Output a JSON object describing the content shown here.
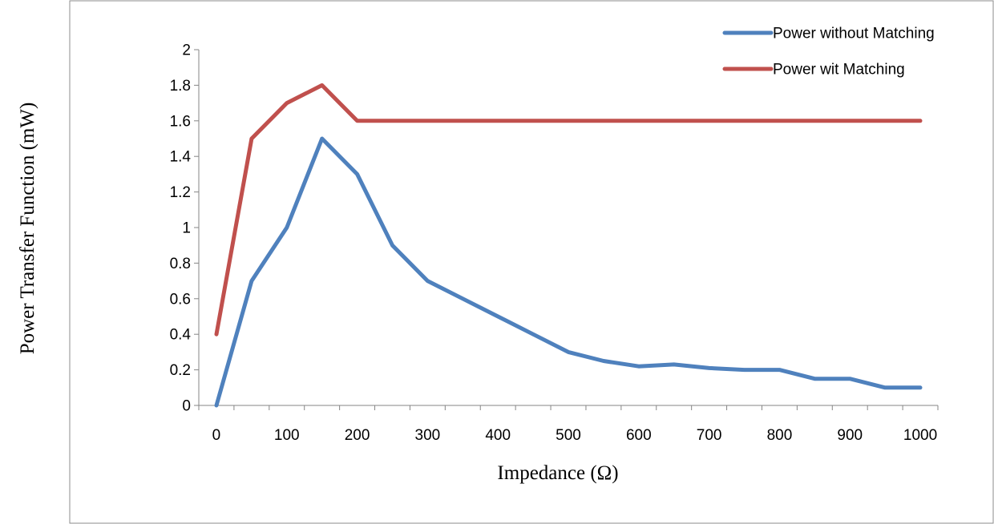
{
  "chart_data": {
    "type": "line",
    "xlabel": "Impedance (Ω)",
    "ylabel": "Power Transfer Function (mW)",
    "categories": [
      "0",
      "50",
      "100",
      "150",
      "200",
      "250",
      "300",
      "350",
      "400",
      "450",
      "500",
      "550",
      "600",
      "650",
      "700",
      "750",
      "800",
      "850",
      "900",
      "950",
      "1000"
    ],
    "tick_labels": [
      "0",
      "",
      "100",
      "",
      "200",
      "",
      "300",
      "",
      "400",
      "",
      "500",
      "",
      "600",
      "",
      "700",
      "",
      "800",
      "",
      "900",
      "",
      "1000"
    ],
    "ylim": [
      0,
      2
    ],
    "yticks": [
      "0",
      "0.2",
      "0.4",
      "0.6",
      "0.8",
      "1",
      "1.2",
      "1.4",
      "1.6",
      "1.8",
      "2"
    ],
    "grid": false,
    "legend_position": "top-right",
    "series": [
      {
        "name": "Power without Matching",
        "color": "#4F81BD",
        "values": [
          0,
          0.7,
          1.0,
          1.5,
          1.3,
          0.9,
          0.7,
          0.6,
          0.5,
          0.4,
          0.3,
          0.25,
          0.22,
          0.23,
          0.21,
          0.2,
          0.2,
          0.15,
          0.15,
          0.1,
          0.1
        ]
      },
      {
        "name": "Power wit Matching",
        "color": "#C0504D",
        "values": [
          0.4,
          1.5,
          1.7,
          1.8,
          1.6,
          1.6,
          1.6,
          1.6,
          1.6,
          1.6,
          1.6,
          1.6,
          1.6,
          1.6,
          1.6,
          1.6,
          1.6,
          1.6,
          1.6,
          1.6,
          1.6
        ]
      }
    ]
  }
}
